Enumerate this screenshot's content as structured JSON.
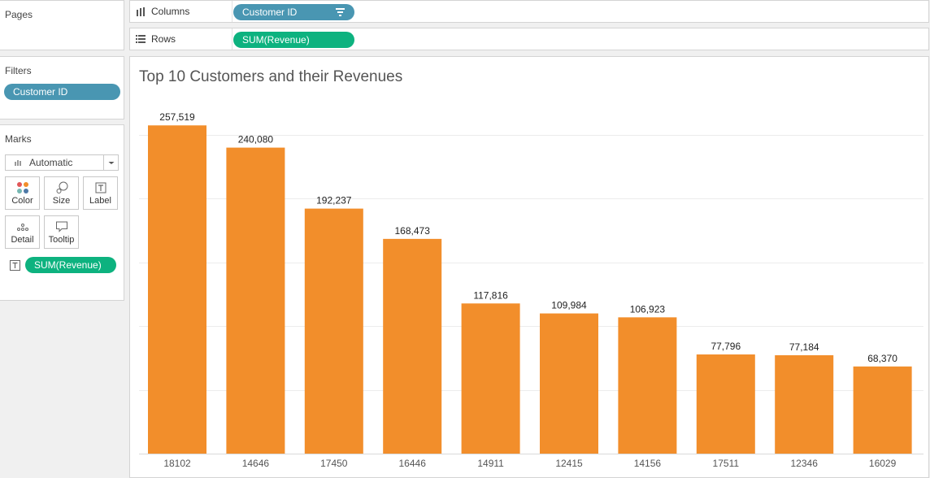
{
  "pages": {
    "title": "Pages"
  },
  "filters": {
    "title": "Filters",
    "pill": "Customer ID"
  },
  "marks": {
    "title": "Marks",
    "mark_type": "Automatic",
    "buttons": {
      "color": "Color",
      "size": "Size",
      "label": "Label",
      "detail": "Detail",
      "tooltip": "Tooltip"
    },
    "label_pill": "SUM(Revenue)"
  },
  "columns_shelf": {
    "label": "Columns",
    "pill": "Customer ID"
  },
  "rows_shelf": {
    "label": "Rows",
    "pill": "SUM(Revenue)"
  },
  "colors": {
    "bar": "#f28e2b",
    "dimension_pill": "#4996b2",
    "measure_pill": "#0db27f"
  },
  "chart_data": {
    "type": "bar",
    "title": "Top 10 Customers and their Revenues",
    "categories": [
      "18102",
      "14646",
      "17450",
      "16446",
      "14911",
      "12415",
      "14156",
      "17511",
      "12346",
      "16029"
    ],
    "values": [
      257519,
      240080,
      192237,
      168473,
      117816,
      109984,
      106923,
      77796,
      77184,
      68370
    ],
    "value_labels": [
      "257,519",
      "240,080",
      "192,237",
      "168,473",
      "117,816",
      "109,984",
      "106,923",
      "77,796",
      "77,184",
      "68,370"
    ],
    "xlabel": "",
    "ylabel": "",
    "ylim": [
      0,
      280000
    ],
    "grid": true,
    "legend": "none"
  }
}
